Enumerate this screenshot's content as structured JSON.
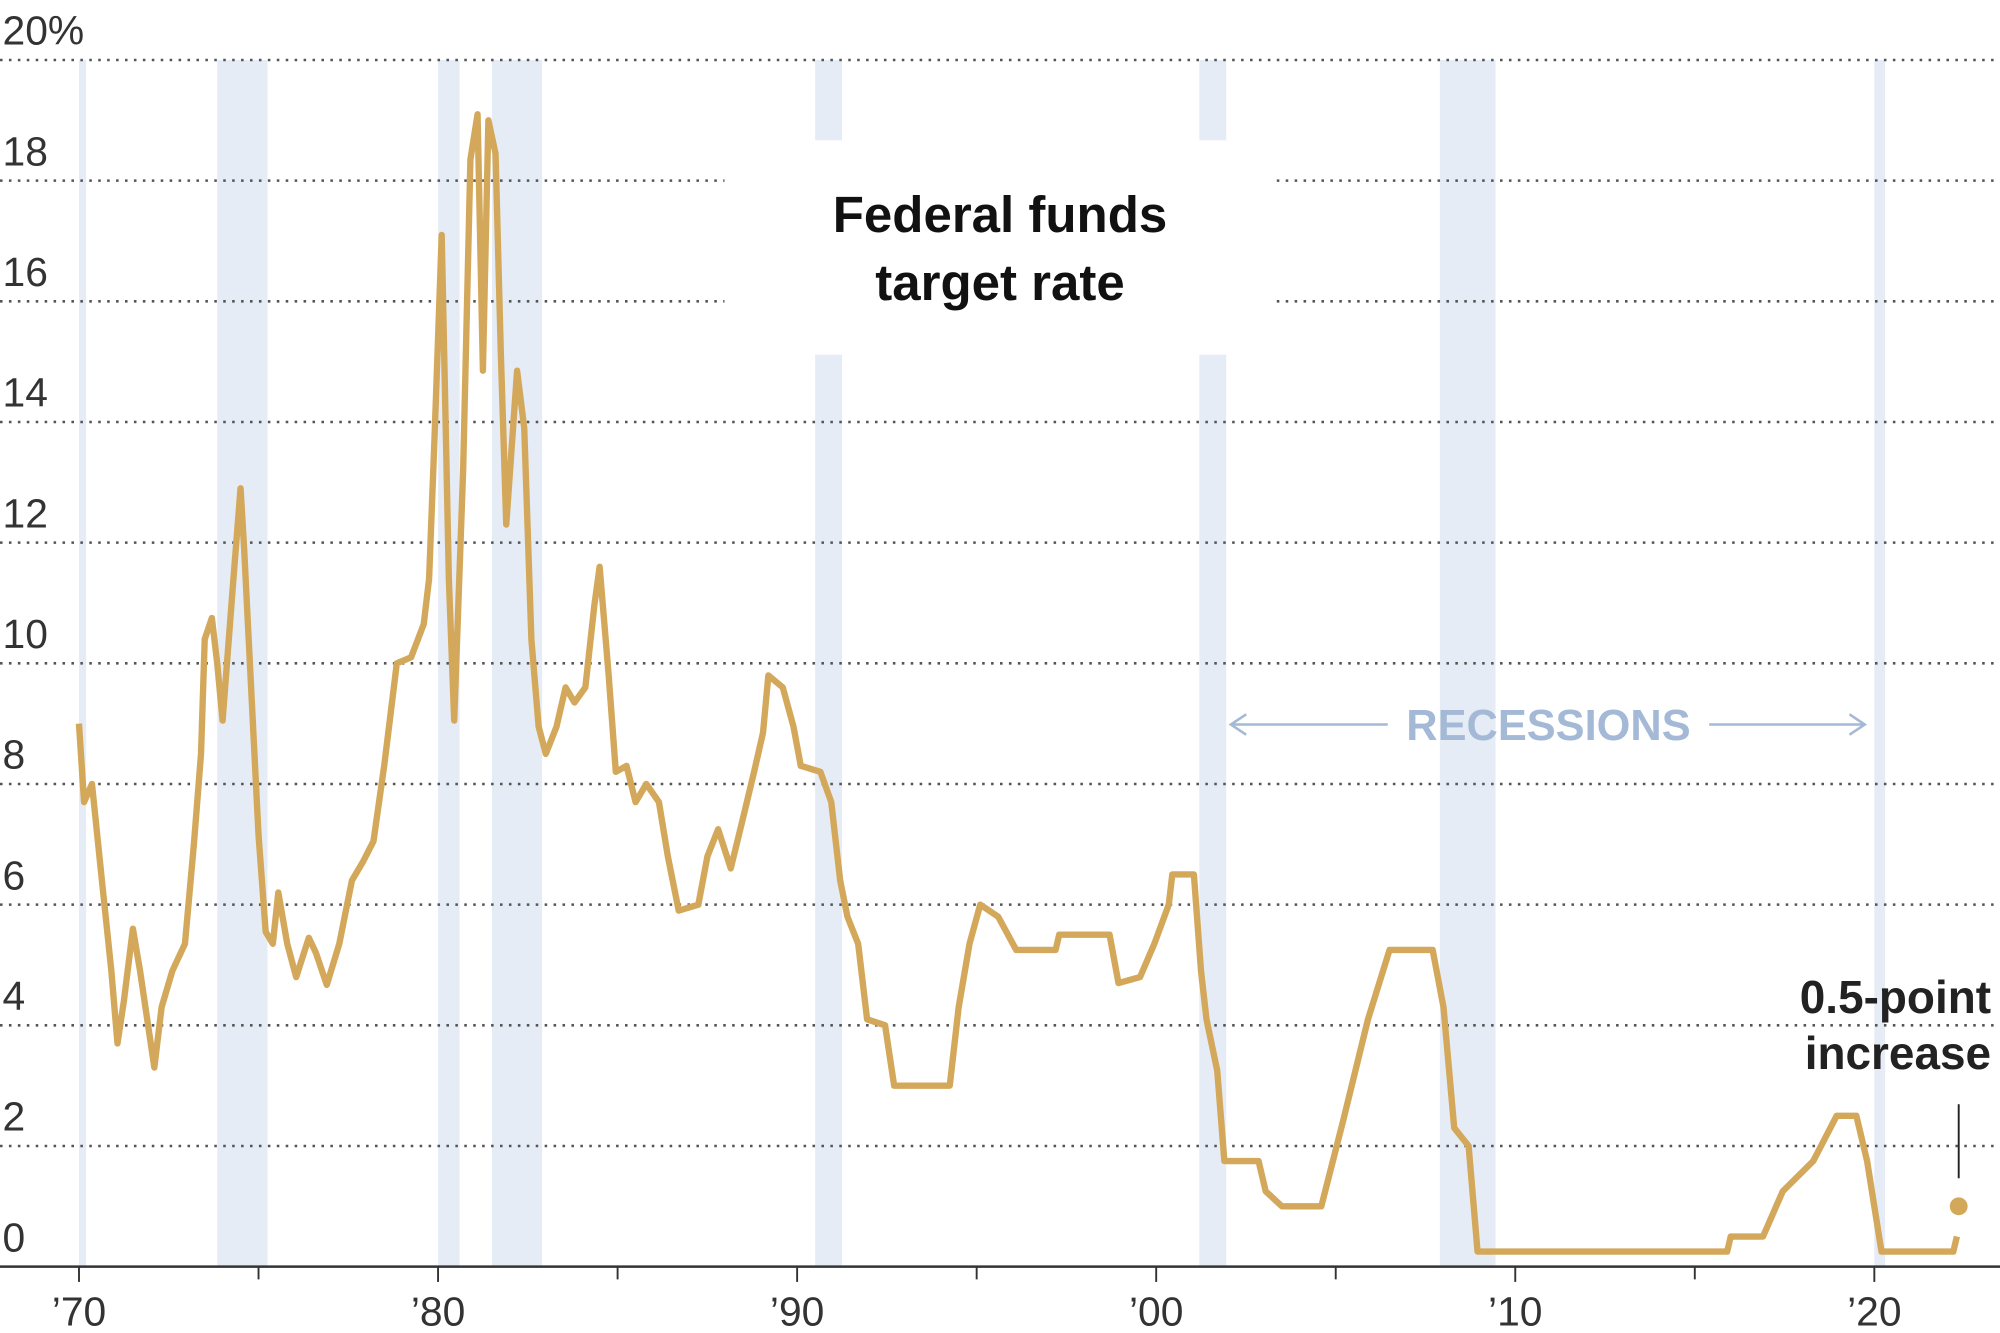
{
  "chart_data": {
    "type": "line",
    "title": [
      "Federal funds",
      "target rate"
    ],
    "color": "#d4a85a",
    "x": [
      1970.0,
      1970.14,
      1970.36,
      1970.64,
      1970.9,
      1971.07,
      1971.25,
      1971.5,
      1971.7,
      1971.9,
      1972.1,
      1972.3,
      1972.6,
      1972.95,
      1973.2,
      1973.4,
      1973.5,
      1973.7,
      1973.85,
      1974.0,
      1974.3,
      1974.5,
      1974.6,
      1974.8,
      1975.0,
      1975.2,
      1975.4,
      1975.55,
      1975.8,
      1976.05,
      1976.4,
      1976.6,
      1976.9,
      1977.25,
      1977.6,
      1977.9,
      1978.2,
      1978.5,
      1978.85,
      1979.25,
      1979.6,
      1979.75,
      1979.9,
      1980.1,
      1980.3,
      1980.45,
      1980.7,
      1980.9,
      1981.1,
      1981.25,
      1981.4,
      1981.6,
      1981.75,
      1981.9,
      1982.2,
      1982.4,
      1982.6,
      1982.8,
      1983.0,
      1983.3,
      1983.55,
      1983.8,
      1984.1,
      1984.35,
      1984.5,
      1984.75,
      1984.95,
      1985.25,
      1985.5,
      1985.8,
      1986.15,
      1986.4,
      1986.7,
      1987.25,
      1987.5,
      1987.8,
      1988.15,
      1988.5,
      1988.8,
      1989.05,
      1989.2,
      1989.6,
      1989.9,
      1990.1,
      1990.65,
      1990.95,
      1991.2,
      1991.4,
      1991.7,
      1991.95,
      1992.45,
      1992.7,
      1994.25,
      1994.5,
      1994.8,
      1995.1,
      1995.6,
      1996.1,
      1997.2,
      1997.3,
      1998.7,
      1998.95,
      1999.55,
      1999.95,
      2000.35,
      2000.45,
      2001.05,
      2001.25,
      2001.4,
      2001.7,
      2001.9,
      2002.85,
      2003.05,
      2003.5,
      2004.6,
      2005.2,
      2005.9,
      2006.5,
      2007.7,
      2008.0,
      2008.3,
      2008.7,
      2008.95,
      2015.9,
      2016.0,
      2016.9,
      2017.45,
      2018.3,
      2018.95,
      2019.5,
      2019.8,
      2020.2,
      2022.2,
      2022.3
    ],
    "values": [
      9.0,
      7.7,
      8.0,
      6.4,
      4.9,
      3.7,
      4.4,
      5.6,
      4.9,
      4.1,
      3.3,
      4.3,
      4.9,
      5.35,
      7.0,
      8.5,
      10.4,
      10.75,
      10.0,
      9.05,
      11.4,
      12.9,
      11.9,
      9.5,
      7.15,
      5.55,
      5.35,
      6.2,
      5.35,
      4.8,
      5.45,
      5.2,
      4.67,
      5.35,
      6.4,
      6.7,
      7.05,
      8.3,
      10.0,
      10.1,
      10.65,
      11.4,
      13.7,
      17.1,
      11.4,
      9.05,
      13.2,
      18.35,
      19.1,
      14.85,
      19.0,
      18.45,
      15.1,
      12.3,
      14.85,
      13.9,
      10.4,
      8.95,
      8.5,
      8.95,
      9.6,
      9.35,
      9.6,
      10.95,
      11.6,
      9.8,
      8.2,
      8.3,
      7.7,
      8.0,
      7.7,
      6.8,
      5.9,
      6.0,
      6.8,
      7.25,
      6.6,
      7.45,
      8.2,
      8.85,
      9.8,
      9.6,
      8.95,
      8.3,
      8.2,
      7.7,
      6.4,
      5.8,
      5.35,
      4.1,
      4.0,
      3.0,
      3.0,
      4.3,
      5.35,
      6.0,
      5.8,
      5.25,
      5.25,
      5.5,
      5.5,
      4.7,
      4.8,
      5.35,
      6.0,
      6.5,
      6.5,
      4.9,
      4.1,
      3.25,
      1.75,
      1.75,
      1.25,
      1.0,
      1.0,
      2.4,
      4.1,
      5.25,
      5.25,
      4.3,
      2.3,
      2.0,
      0.25,
      0.25,
      0.5,
      0.5,
      1.25,
      1.75,
      2.5,
      2.5,
      1.75,
      0.25,
      0.25,
      0.5
    ],
    "highlight": {
      "x": 2022.35,
      "value": 1.0,
      "label": [
        "0.5-point",
        "increase"
      ]
    },
    "recessions_label": "RECESSIONS",
    "recessions": [
      [
        1970.0,
        1970.2
      ],
      [
        1973.85,
        1975.25
      ],
      [
        1980.0,
        1980.6
      ],
      [
        1981.5,
        1982.9
      ],
      [
        1990.5,
        1991.25
      ],
      [
        2001.2,
        2001.95
      ],
      [
        2007.9,
        2009.45
      ],
      [
        2020.0,
        2020.3
      ]
    ],
    "recession_color": "#e6ecf5",
    "xlim": [
      1967.8,
      2023.5
    ],
    "ylim": [
      0,
      20
    ],
    "xticks": [
      {
        "value": 1970,
        "label": "’70"
      },
      {
        "value": 1980,
        "label": "’80"
      },
      {
        "value": 1990,
        "label": "’90"
      },
      {
        "value": 2000,
        "label": "’00"
      },
      {
        "value": 2010,
        "label": "’10"
      },
      {
        "value": 2020,
        "label": "’20"
      }
    ],
    "xminorticks": [
      1975,
      1985,
      1995,
      2005,
      2015
    ],
    "yticks": [
      0,
      2,
      4,
      6,
      8,
      10,
      12,
      14,
      16,
      18,
      {
        "value": 20,
        "label": "20%"
      }
    ],
    "grid": true
  }
}
